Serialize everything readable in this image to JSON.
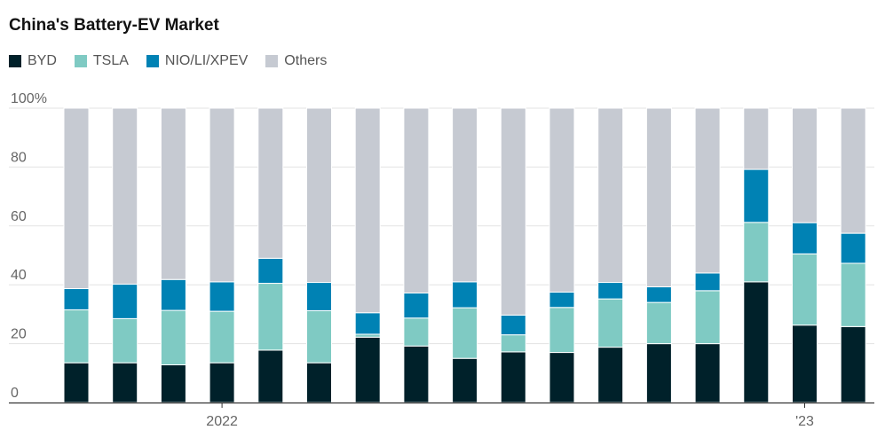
{
  "chart_data": {
    "type": "bar",
    "stacked": true,
    "title": "China's Battery-EV Market",
    "xlabel": "",
    "ylabel": "",
    "ylim": [
      0,
      100
    ],
    "y_ticks": [
      "100%",
      "80",
      "60",
      "40",
      "20",
      "0"
    ],
    "x_tick_labels": [
      {
        "index": 3,
        "label": "2022"
      },
      {
        "index": 15,
        "label": "'23"
      }
    ],
    "grid": true,
    "legend_placement": "top-left",
    "n_bars": 17,
    "series": [
      {
        "name": "BYD",
        "color": "#00212a",
        "values": [
          13.5,
          13.5,
          12.8,
          13.5,
          17.8,
          13.5,
          22.2,
          19.2,
          15.0,
          17.2,
          17.0,
          18.8,
          20.0,
          20.0,
          41.0,
          26.3,
          25.8
        ]
      },
      {
        "name": "TSLA",
        "color": "#7fcac3",
        "values": [
          18.0,
          15.0,
          18.5,
          17.5,
          22.7,
          17.7,
          1.0,
          9.5,
          17.2,
          5.8,
          15.3,
          16.4,
          14.0,
          18.0,
          20.2,
          24.2,
          21.5
        ]
      },
      {
        "name": "NIO/LI/XPEV",
        "color": "#0082b4",
        "values": [
          7.2,
          11.7,
          10.5,
          10.0,
          8.5,
          9.6,
          7.3,
          8.5,
          8.8,
          6.7,
          5.2,
          5.6,
          5.3,
          6.0,
          18.0,
          10.6,
          10.2
        ]
      },
      {
        "name": "Others",
        "color": "#c6cad2",
        "values": [
          61.3,
          59.8,
          58.2,
          59.0,
          51.0,
          59.2,
          69.5,
          62.8,
          59.0,
          70.3,
          62.5,
          59.2,
          60.7,
          56.0,
          20.8,
          38.9,
          42.5
        ]
      }
    ]
  }
}
